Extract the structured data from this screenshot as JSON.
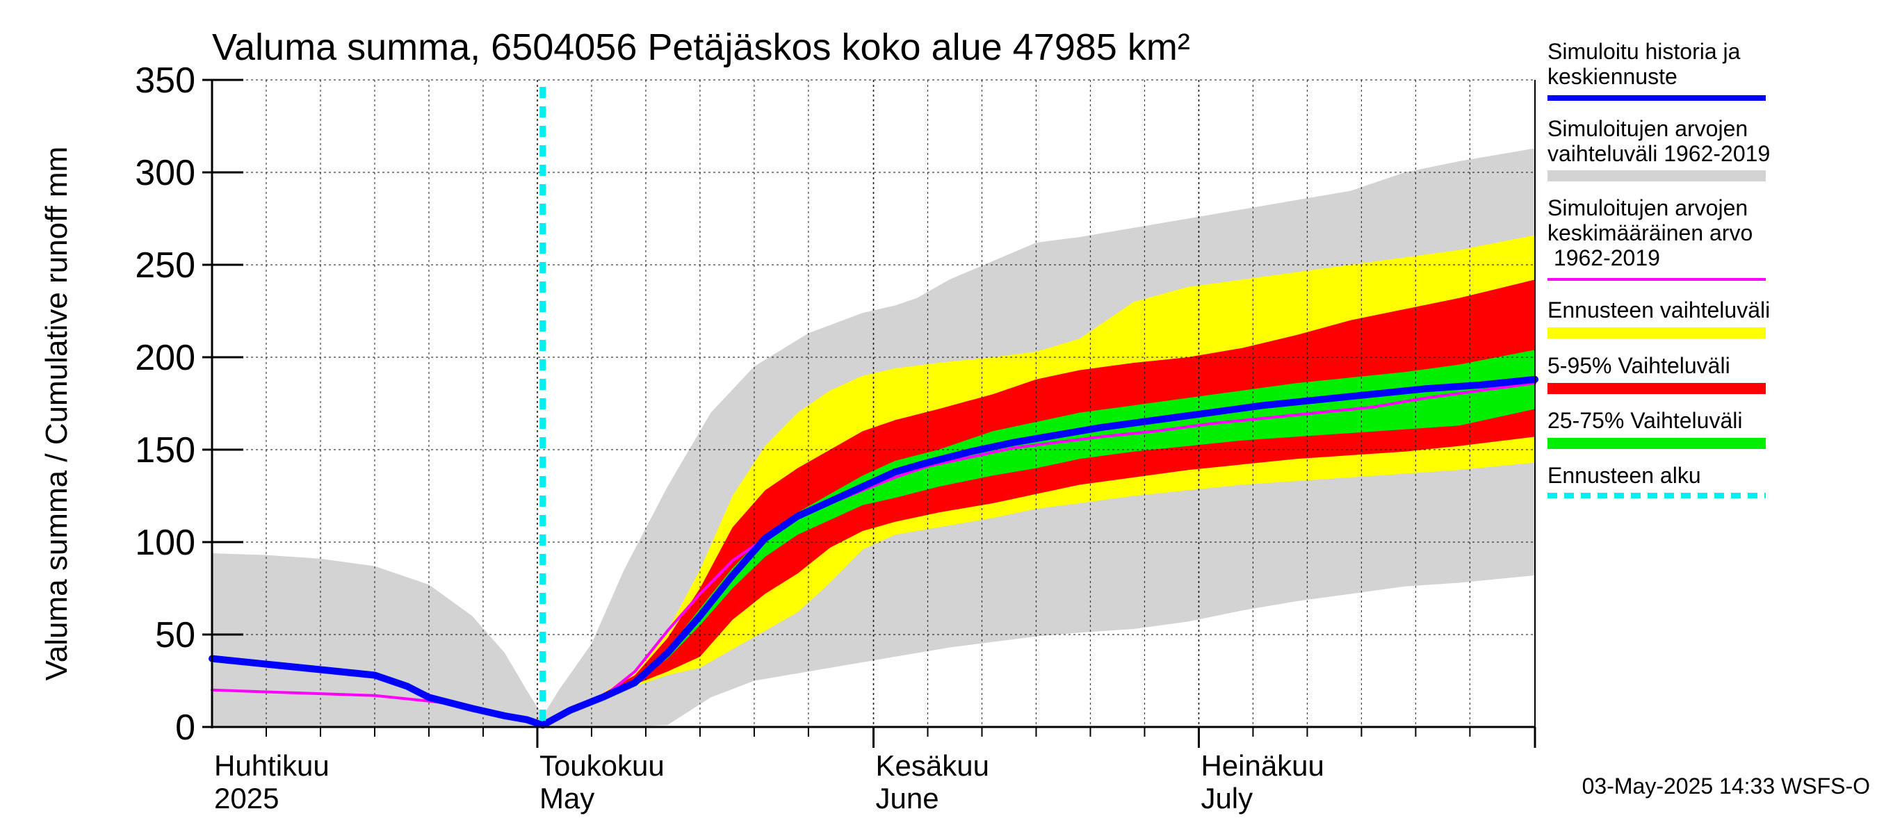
{
  "chart_data": {
    "type": "area",
    "title": "Valuma summa, 6504056 Petäjäskos koko alue 47985 km²",
    "ylabel": "Valuma summa / Cumulative runoff    mm",
    "xlabel": "",
    "ylim": [
      0,
      350
    ],
    "xlim": [
      0,
      122
    ],
    "y_ticks": [
      0,
      50,
      100,
      150,
      200,
      250,
      300,
      350
    ],
    "forecast_start": 30.5,
    "x_axis": {
      "month_labels": [
        {
          "day": 0,
          "fi": "Huhtikuu",
          "en": "2025"
        },
        {
          "day": 30,
          "fi": "Toukokuu",
          "en": "May"
        },
        {
          "day": 61,
          "fi": "Kesäkuu",
          "en": "June"
        },
        {
          "day": 91,
          "fi": "Heinäkuu",
          "en": "July"
        }
      ],
      "month_boundaries": [
        30,
        61,
        91,
        122
      ],
      "minor_ticks_every_days": 5
    },
    "bands": [
      {
        "name": "Simuloitujen arvojen vaihteluväli 1962-2019",
        "color": "#d3d3d3",
        "x": [
          0,
          5,
          10,
          15,
          20,
          24,
          27,
          29,
          30.5,
          32,
          35,
          38,
          42,
          46,
          50,
          55,
          60,
          63,
          65,
          68,
          72,
          76,
          80,
          85,
          90,
          95,
          100,
          105,
          110,
          115,
          122
        ],
        "upper": [
          94,
          93,
          91,
          87,
          77,
          60,
          40,
          20,
          6,
          20,
          45,
          85,
          130,
          170,
          195,
          213,
          224,
          228,
          232,
          242,
          252,
          262,
          265,
          270,
          275,
          280,
          285,
          290,
          300,
          306,
          313
        ],
        "lower": [
          0,
          0,
          0,
          0,
          0,
          0,
          0,
          0,
          0,
          0,
          0,
          0,
          1,
          16,
          25,
          30,
          35,
          38,
          40,
          43,
          46,
          49,
          51,
          53,
          57,
          63,
          68,
          72,
          76,
          78,
          82
        ]
      },
      {
        "name": "Ennusteen vaihteluväli",
        "color": "#ffff00",
        "x": [
          30.5,
          33,
          36,
          39,
          42,
          45,
          48,
          51,
          54,
          57,
          60,
          63,
          67,
          72,
          76,
          80,
          85,
          90,
          95,
          100,
          105,
          110,
          115,
          122
        ],
        "upper": [
          2,
          10,
          18,
          30,
          52,
          85,
          125,
          152,
          170,
          182,
          190,
          194,
          197,
          200,
          203,
          210,
          230,
          238,
          242,
          246,
          250,
          254,
          258,
          266
        ],
        "lower": [
          2,
          9,
          15,
          22,
          28,
          32,
          42,
          52,
          62,
          78,
          96,
          104,
          108,
          113,
          118,
          121,
          125,
          128,
          131,
          133,
          135,
          137,
          139,
          143
        ]
      },
      {
        "name": "5-95% Vaihteluväli",
        "color": "#ff0000",
        "x": [
          30.5,
          33,
          36,
          39,
          42,
          45,
          48,
          51,
          54,
          57,
          60,
          63,
          67,
          72,
          76,
          80,
          85,
          90,
          95,
          100,
          105,
          110,
          115,
          122
        ],
        "upper": [
          2,
          10,
          18,
          28,
          48,
          75,
          108,
          128,
          140,
          150,
          160,
          166,
          172,
          180,
          188,
          193,
          197,
          200,
          205,
          212,
          220,
          226,
          232,
          242
        ],
        "lower": [
          2,
          9,
          15,
          23,
          30,
          38,
          58,
          72,
          83,
          97,
          106,
          111,
          116,
          121,
          126,
          131,
          135,
          139,
          142,
          145,
          147,
          149,
          152,
          157
        ]
      },
      {
        "name": "25-75% Vaihteluväli",
        "color": "#00ee00",
        "x": [
          30.5,
          33,
          36,
          39,
          42,
          45,
          48,
          51,
          54,
          57,
          60,
          63,
          67,
          72,
          76,
          80,
          85,
          90,
          95,
          100,
          105,
          110,
          115,
          122
        ],
        "upper": [
          2,
          10,
          17,
          25,
          42,
          64,
          86,
          104,
          116,
          126,
          136,
          144,
          150,
          160,
          165,
          170,
          174,
          178,
          182,
          186,
          189,
          192,
          196,
          204
        ],
        "lower": [
          2,
          9,
          16,
          24,
          37,
          55,
          75,
          92,
          104,
          112,
          120,
          124,
          130,
          136,
          140,
          145,
          149,
          152,
          155,
          157,
          159,
          161,
          163,
          172
        ]
      }
    ],
    "series": [
      {
        "name": "Simuloitu historia ja keskiennuste",
        "color": "#0000ff",
        "x": [
          0,
          5,
          10,
          15,
          18,
          20,
          24,
          27,
          29,
          30.5,
          33,
          36,
          39,
          42,
          45,
          48,
          51,
          54,
          57,
          60,
          63,
          66,
          70,
          74,
          78,
          82,
          87,
          92,
          97,
          102,
          107,
          112,
          117,
          122
        ],
        "values": [
          37,
          34,
          31,
          28,
          22,
          16,
          10,
          6,
          4,
          1,
          9,
          16,
          24,
          40,
          60,
          82,
          102,
          114,
          122,
          130,
          138,
          143,
          149,
          154,
          158,
          162,
          166,
          170,
          174,
          177,
          180,
          183,
          185,
          188
        ]
      },
      {
        "name": "Simuloitujen arvojen keskimääräinen arvo 1962-2019",
        "color": "#ff00ff",
        "x": [
          0,
          5,
          10,
          15,
          20,
          24,
          27,
          29,
          30.5,
          33,
          36,
          39,
          42,
          45,
          48,
          51,
          54,
          57,
          60,
          63,
          66,
          70,
          74,
          78,
          82,
          87,
          92,
          97,
          102,
          107,
          112,
          117,
          122
        ],
        "values": [
          20,
          19,
          18,
          17,
          14,
          11,
          7,
          4,
          1,
          9,
          16,
          30,
          52,
          72,
          90,
          102,
          114,
          121,
          128,
          135,
          141,
          146,
          151,
          154,
          157,
          160,
          164,
          167,
          170,
          173,
          178,
          182,
          186
        ]
      }
    ],
    "legend": [
      {
        "label": "Simuloitu historia ja keskiennuste",
        "color": "#0000ff",
        "style": "line"
      },
      {
        "label": "Simuloitujen arvojen vaihteluväli 1962-2019",
        "color": "#d3d3d3",
        "style": "band"
      },
      {
        "label": "Simuloitujen arvojen keskimääräinen arvo 1962-2019",
        "color": "#ff00ff",
        "style": "thin-line"
      },
      {
        "label": "Ennusteen vaihteluväli",
        "color": "#ffff00",
        "style": "band"
      },
      {
        "label": "5-95% Vaihteluväli",
        "color": "#ff0000",
        "style": "band"
      },
      {
        "label": "25-75% Vaihteluväli",
        "color": "#00ee00",
        "style": "band"
      },
      {
        "label": "Ennusteen alku",
        "color": "#00eeee",
        "style": "dashed"
      }
    ],
    "legend_position": "right",
    "grid": true
  },
  "footer": {
    "timestamp": "03-May-2025 14:33 WSFS-O"
  }
}
